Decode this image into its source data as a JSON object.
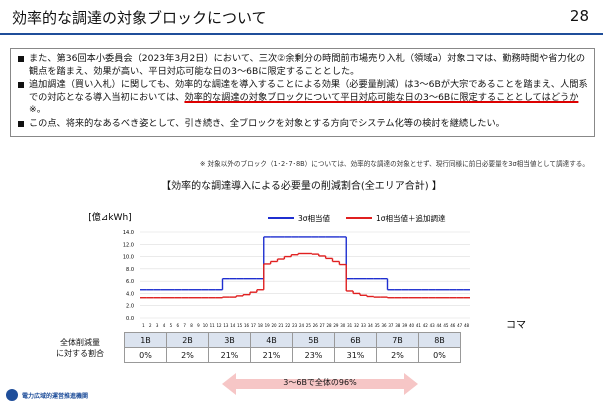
{
  "header": {
    "title": "効率的な調達の対象ブロックについて",
    "page": "28"
  },
  "bullets": [
    [
      {
        "text": "また、第36回本小委員会（2023年3月2日）において、三次②余剰分の時間前市場売り入札（領域a）対象コマは、勤務時間や省力化の観点を踏まえ、効果が高い、平日対応可能な日の3～6Bに限定することとした。",
        "underline": false
      }
    ],
    [
      {
        "text": "追加調達（買い入札）に関しても、効率的な調達を導入することによる効果（必要量削減）は3～6Bが大宗であることを踏まえ、人間系での対応となる導入当初においては、",
        "underline": false
      },
      {
        "text": "効率的な調達の対象ブロックについて平日対応可能な日の3～6Bに限定することとしてはどうか",
        "underline": true
      },
      {
        "text": "※。",
        "underline": false
      }
    ],
    [
      {
        "text": "この点、将来的なあるべき姿として、引き続き、全ブロックを対象とする方向でシステム化等の検討を継続したい。",
        "underline": false
      }
    ]
  ],
  "note": "※ 対象以外のブロック（1･2･7･8B）については、効率的な調達の対象とせず、現行同様に前日必要量を3σ相当値として調達する。",
  "chart_data": {
    "type": "step",
    "title": "【効率的な調達導入による必要量の削減割合(全エリア合計) 】",
    "y_label": "[億⊿kWh]",
    "x_label": "コマ",
    "categories": [
      1,
      2,
      3,
      4,
      5,
      6,
      7,
      8,
      9,
      10,
      11,
      12,
      13,
      14,
      15,
      16,
      17,
      18,
      19,
      20,
      21,
      22,
      23,
      24,
      25,
      26,
      27,
      28,
      29,
      30,
      31,
      32,
      33,
      34,
      35,
      36,
      37,
      38,
      39,
      40,
      41,
      42,
      43,
      44,
      45,
      46,
      47,
      48
    ],
    "series": [
      {
        "name": "3σ相当値",
        "color": "#1f2fd0",
        "values": [
          4.6,
          4.6,
          4.6,
          4.6,
          4.6,
          4.6,
          4.6,
          4.6,
          4.6,
          4.6,
          4.6,
          4.6,
          6.4,
          6.4,
          6.4,
          6.4,
          6.4,
          6.4,
          13.2,
          13.2,
          13.2,
          13.2,
          13.2,
          13.2,
          13.2,
          13.2,
          13.2,
          13.2,
          13.2,
          13.2,
          6.4,
          6.4,
          6.4,
          6.4,
          6.4,
          6.4,
          4.6,
          4.6,
          4.6,
          4.6,
          4.6,
          4.6,
          4.6,
          4.6,
          4.6,
          4.6,
          4.6,
          4.6
        ]
      },
      {
        "name": "1σ相当値＋追加調達",
        "color": "#e02020",
        "values": [
          3.3,
          3.3,
          3.3,
          3.3,
          3.3,
          3.3,
          3.3,
          3.3,
          3.3,
          3.3,
          3.3,
          3.3,
          3.4,
          3.4,
          3.6,
          3.8,
          4.2,
          4.6,
          8.8,
          9.2,
          9.6,
          10.0,
          10.3,
          10.5,
          10.5,
          10.4,
          10.1,
          9.7,
          9.2,
          8.7,
          4.4,
          4.0,
          3.7,
          3.5,
          3.4,
          3.4,
          3.3,
          3.3,
          3.3,
          3.3,
          3.3,
          3.3,
          3.3,
          3.3,
          3.3,
          3.3,
          3.3,
          3.3
        ]
      }
    ],
    "ylim": [
      0,
      14
    ],
    "yticks": [
      {
        "value": 0,
        "label": "0.0"
      },
      {
        "value": 2,
        "label": "2.0"
      },
      {
        "value": 4,
        "label": "4.0"
      },
      {
        "value": 6,
        "label": "6.0"
      },
      {
        "value": 8,
        "label": "8.0"
      },
      {
        "value": 10,
        "label": "10.0"
      },
      {
        "value": 12,
        "label": "12.0"
      },
      {
        "value": 14,
        "label": "14.0"
      }
    ],
    "grid": true
  },
  "table": {
    "row_label": "全体削減量\nに対する割合",
    "header": [
      "1B",
      "2B",
      "3B",
      "4B",
      "5B",
      "6B",
      "7B",
      "8B"
    ],
    "row": [
      "0%",
      "2%",
      "21%",
      "21%",
      "23%",
      "31%",
      "2%",
      "0%"
    ]
  },
  "arrow_label": "3～6Bで全体の96%",
  "logo": "電力広域的運営推進機関"
}
